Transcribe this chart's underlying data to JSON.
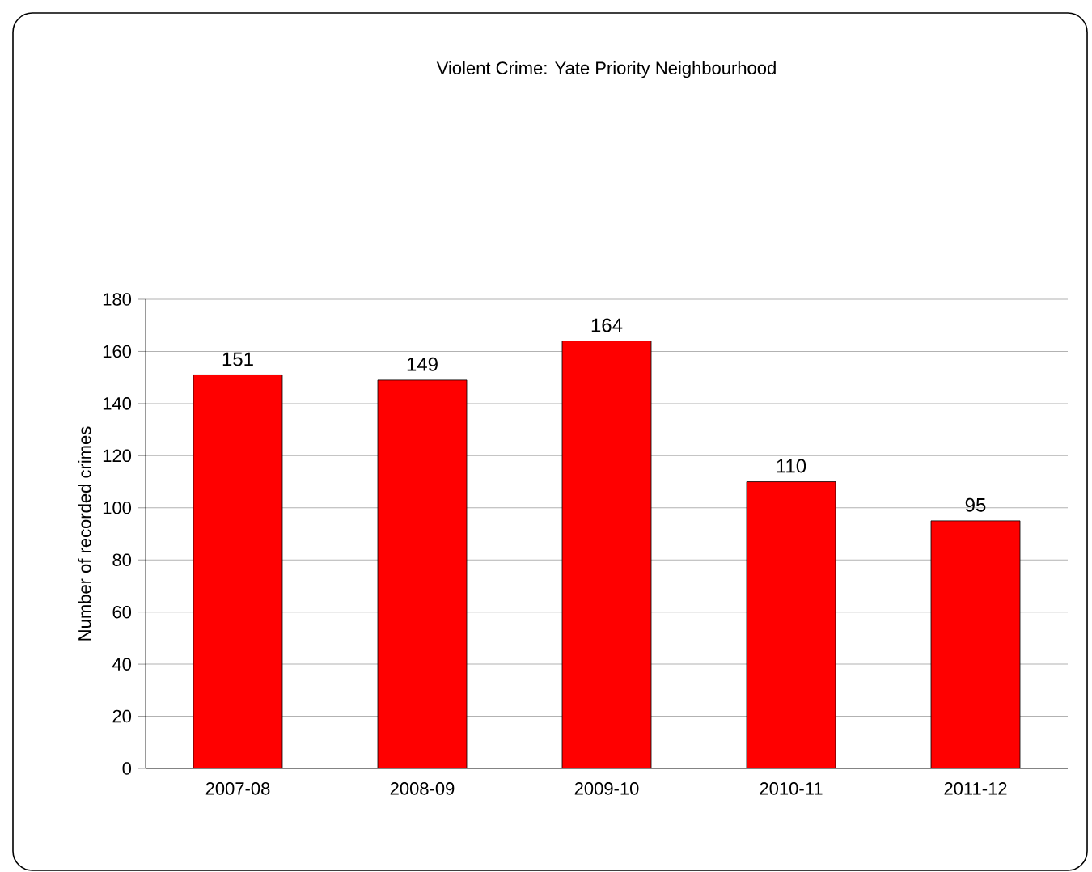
{
  "chart_data": {
    "type": "bar",
    "title": "Violent Crime: Yate Priority Neighbourhood",
    "ylabel": "Number of recorded crimes",
    "categories": [
      "2007-08",
      "2008-09",
      "2009-10",
      "2010-11",
      "2011-12"
    ],
    "values": [
      151,
      149,
      164,
      110,
      95
    ],
    "color": "#ff0000",
    "ylim": [
      0,
      180
    ],
    "yticks": [
      0,
      20,
      40,
      60,
      80,
      100,
      120,
      140,
      160,
      180
    ],
    "grid": "y",
    "data_labels": true
  }
}
